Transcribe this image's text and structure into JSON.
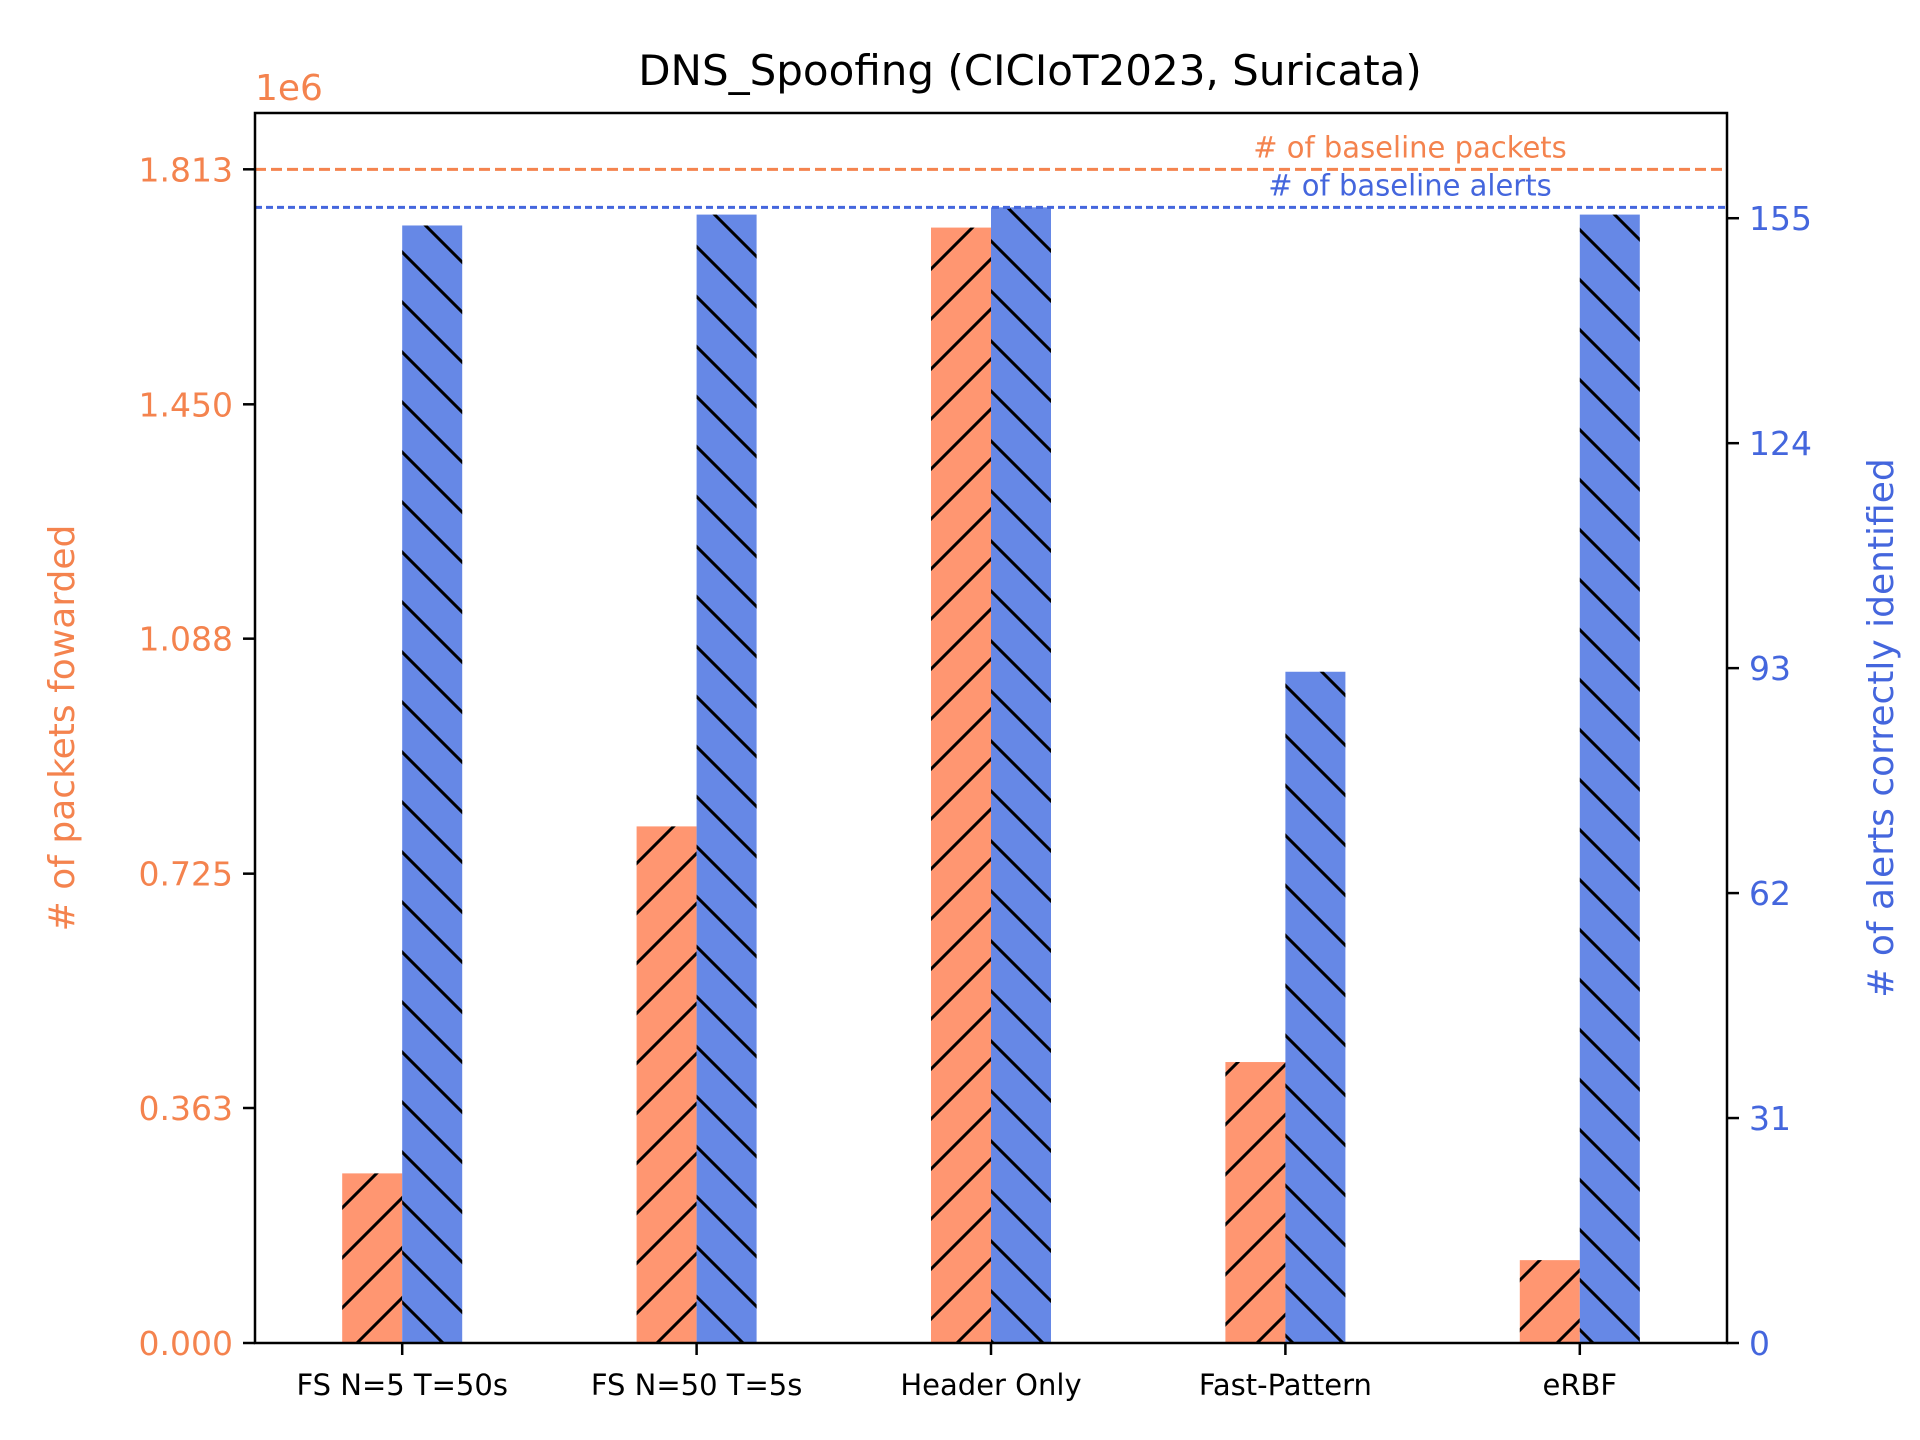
{
  "chart_data": {
    "type": "bar",
    "title": "DNS_Spoofing (CICIoT2023, Suricata)",
    "categories": [
      "FS N=5 T=50s",
      "FS N=50 T=5s",
      "Header Only",
      "Fast-Pattern",
      "eRBF"
    ],
    "series": [
      {
        "axis": "left",
        "color": "#ff9671",
        "hatch": "forward-diagonal",
        "values": [
          262000,
          798000,
          1723000,
          434000,
          128000
        ]
      },
      {
        "axis": "right",
        "color": "#6688e6",
        "hatch": "backward-diagonal",
        "values": [
          154,
          155.5,
          156.5,
          92.5,
          155.5
        ]
      }
    ],
    "y_left": {
      "label": "# of packets fowarded",
      "offset_text": "1e6",
      "ylim": [
        0,
        1.9
      ],
      "ticks": [
        0,
        0.363,
        0.725,
        1.088,
        1.45,
        1.813
      ],
      "tick_labels": [
        "0.000",
        "0.363",
        "0.725",
        "1.088",
        "1.450",
        "1.813"
      ],
      "scale": 1000000,
      "color": "#f4834e"
    },
    "y_right": {
      "label": "# of alerts correctly identified",
      "ylim": [
        0,
        169.5
      ],
      "ticks": [
        0,
        31,
        62,
        93,
        124,
        155
      ],
      "tick_labels": [
        "0",
        "31",
        "62",
        "93",
        "124",
        "155"
      ],
      "color": "#4466dd"
    },
    "reference_lines": [
      {
        "axis": "left",
        "value": 1.813,
        "label": "# of baseline packets",
        "color": "#f4834e"
      },
      {
        "axis": "right",
        "value": 156.5,
        "label": "# of baseline alerts",
        "color": "#4466dd"
      }
    ],
    "grid": false,
    "legend": "none"
  }
}
